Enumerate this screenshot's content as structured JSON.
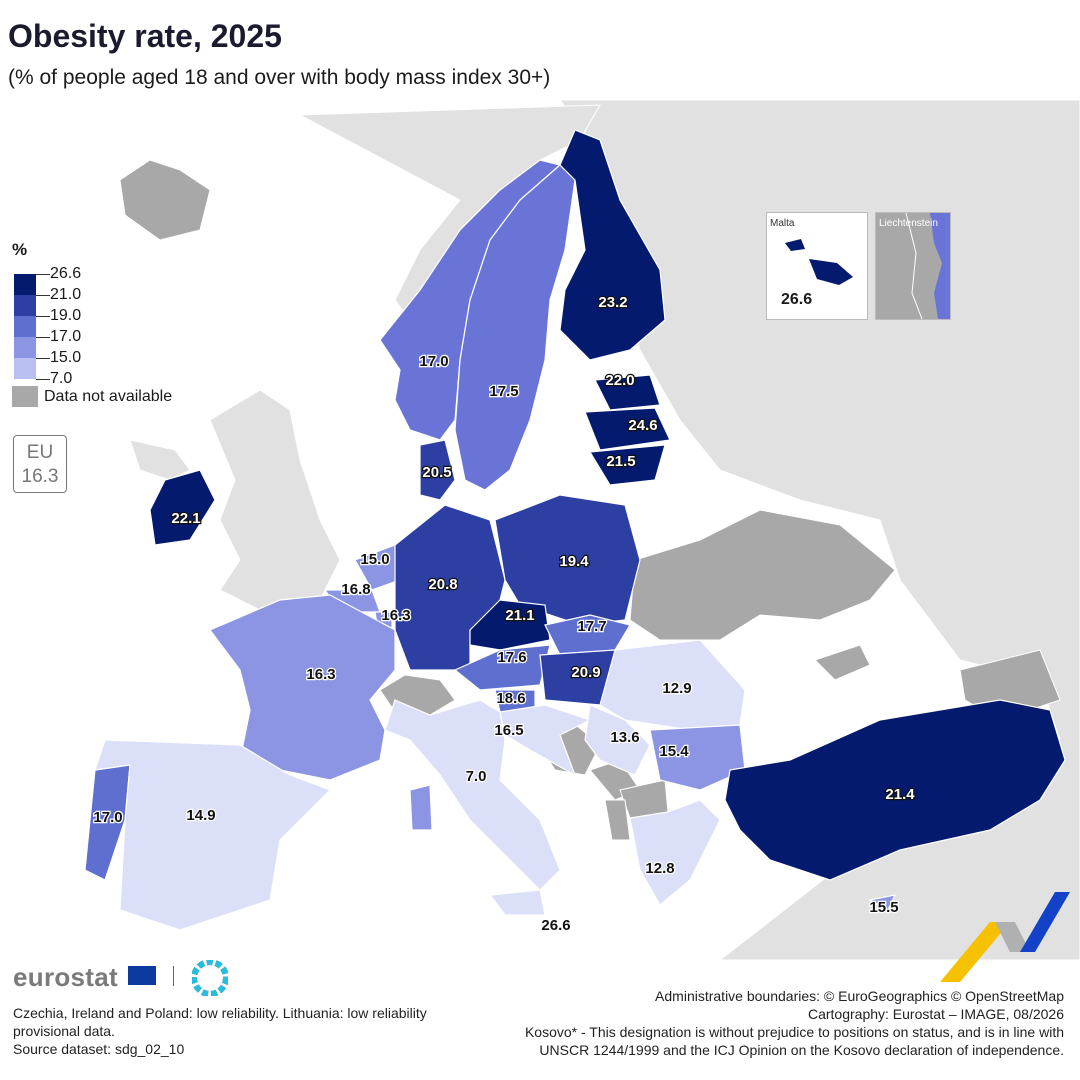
{
  "title": "Obesity rate, 2025",
  "subtitle": "(% of people aged 18 and over with body mass index 30+)",
  "legend": {
    "unit": "%",
    "breaks": [
      "26.6",
      "21.0",
      "19.0",
      "17.0",
      "15.0",
      "7.0"
    ],
    "colors": [
      "#041a6e",
      "#2e3fa4",
      "#5f6fd0",
      "#8b95e3",
      "#b9bff0",
      "#dcdff8"
    ],
    "not_available_label": "Data not available",
    "not_available_color": "#a8a8a8"
  },
  "eu": {
    "label": "EU",
    "value": "16.3"
  },
  "insets": {
    "malta": {
      "name": "Malta",
      "value": "26.6"
    },
    "liechtenstein": {
      "name": "Liechtenstein"
    }
  },
  "countries": [
    {
      "id": "finland",
      "value": "23.2"
    },
    {
      "id": "estonia",
      "value": "22.0"
    },
    {
      "id": "latvia",
      "value": "24.6"
    },
    {
      "id": "lithuania",
      "value": "21.5"
    },
    {
      "id": "ireland",
      "value": "22.1"
    },
    {
      "id": "norway",
      "value": "17.0"
    },
    {
      "id": "sweden",
      "value": "17.5"
    },
    {
      "id": "denmark",
      "value": "20.5"
    },
    {
      "id": "netherlands",
      "value": "15.0"
    },
    {
      "id": "belgium",
      "value": "16.8"
    },
    {
      "id": "luxembourg",
      "value": "16.3"
    },
    {
      "id": "germany",
      "value": "20.8"
    },
    {
      "id": "poland",
      "value": "19.4"
    },
    {
      "id": "czechia",
      "value": "21.1"
    },
    {
      "id": "slovakia",
      "value": "17.7"
    },
    {
      "id": "austria",
      "value": "17.6"
    },
    {
      "id": "hungary",
      "value": "20.9"
    },
    {
      "id": "slovenia",
      "value": "18.6"
    },
    {
      "id": "croatia",
      "value": "16.5"
    },
    {
      "id": "france",
      "value": "16.3"
    },
    {
      "id": "romania",
      "value": "12.9"
    },
    {
      "id": "serbia",
      "value": "13.6"
    },
    {
      "id": "bulgaria",
      "value": "15.4"
    },
    {
      "id": "italy",
      "value": "7.0"
    },
    {
      "id": "portugal",
      "value": "17.0"
    },
    {
      "id": "spain",
      "value": "14.9"
    },
    {
      "id": "turkiye",
      "value": "21.4"
    },
    {
      "id": "greece",
      "value": "12.8"
    },
    {
      "id": "malta",
      "value": "26.6"
    },
    {
      "id": "cyprus",
      "value": "15.5"
    }
  ],
  "brand": "eurostat",
  "footnote_left": "Czechia, Ireland and Poland: low reliability. Lithuania: low reliability provisional data.",
  "source": "Source dataset: sdg_02_10",
  "credits": [
    "Administrative boundaries: © EuroGeographics © OpenStreetMap",
    "Cartography: Eurostat – IMAGE, 08/2026",
    "Kosovo* - This designation is without prejudice to positions on status, and is in line with",
    "UNSCR 1244/1999 and the ICJ Opinion on the Kosovo declaration of independence."
  ]
}
